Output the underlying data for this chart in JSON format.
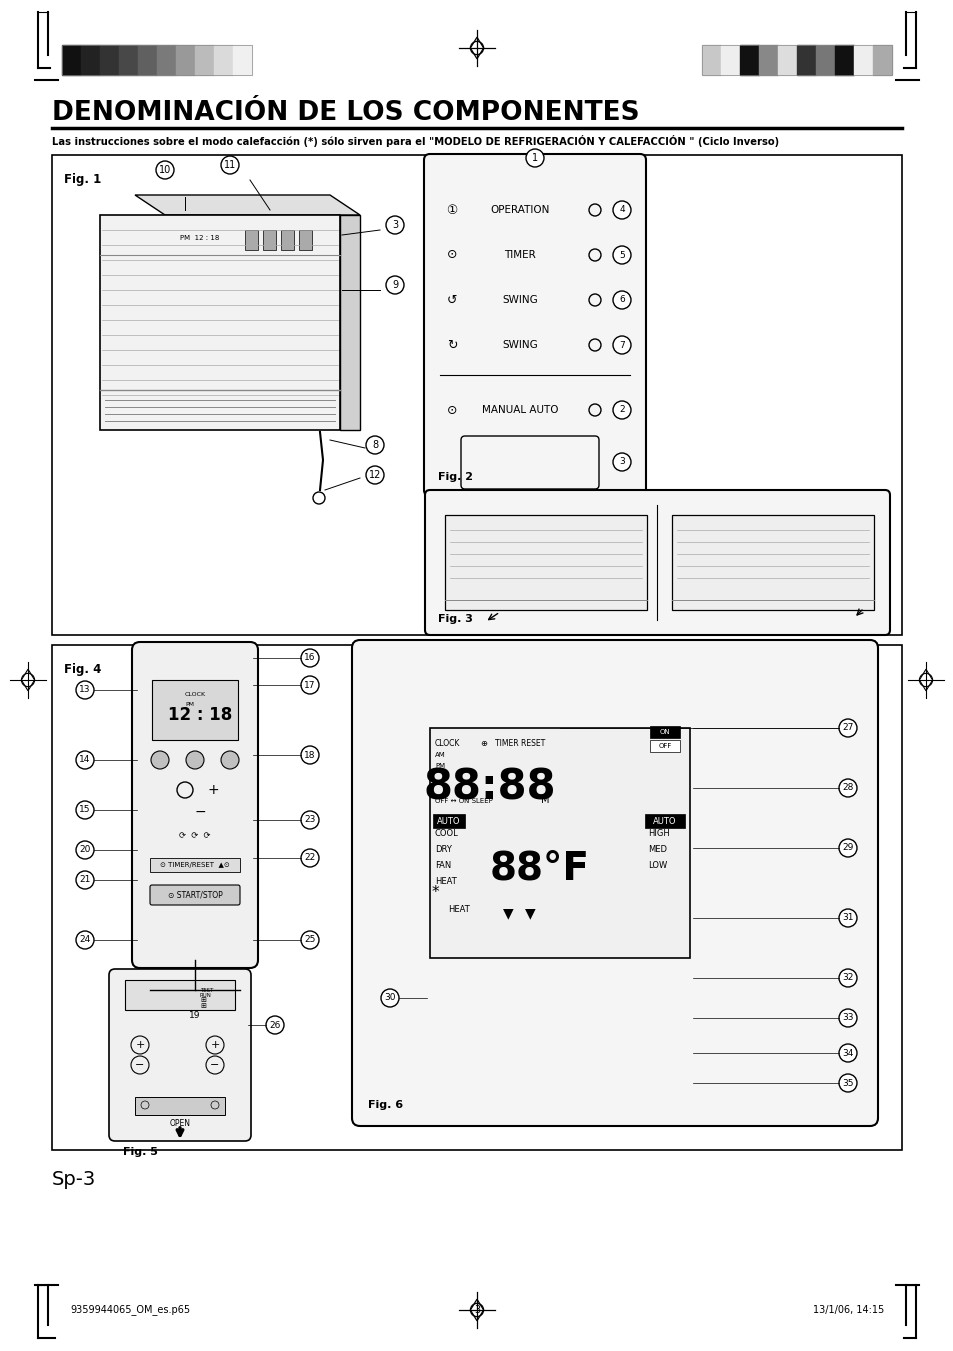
{
  "title": "DENOMINACIÓN DE LOS COMPONENTES",
  "subtitle": "Las instrucciones sobre el modo calefacción (*) sólo sirven para el \"MODELO DE REFRIGERACIÓN Y CALEFACCIÓN \" (Ciclo Inverso)",
  "page_label": "Sp-3",
  "footer_left": "9359944065_OM_es.p65",
  "footer_center": "3",
  "footer_right": "13/1/06, 14:15",
  "bg_color": "#ffffff",
  "text_color": "#000000",
  "fig1_label": "Fig. 1",
  "fig2_label": "Fig. 2",
  "fig3_label": "Fig. 3",
  "fig4_label": "Fig. 4",
  "fig5_label": "Fig. 5",
  "fig6_label": "Fig. 6",
  "bar_colors_left": [
    "#111111",
    "#222222",
    "#333333",
    "#484848",
    "#606060",
    "#7a7a7a",
    "#999999",
    "#bbbbbb",
    "#dadada",
    "#f0f0f0"
  ],
  "bar_colors_right": [
    "#c8c8c8",
    "#eeeeee",
    "#111111",
    "#888888",
    "#dddddd",
    "#333333",
    "#777777",
    "#111111",
    "#eeeeee",
    "#aaaaaa"
  ],
  "crosshair_color": "#000000"
}
